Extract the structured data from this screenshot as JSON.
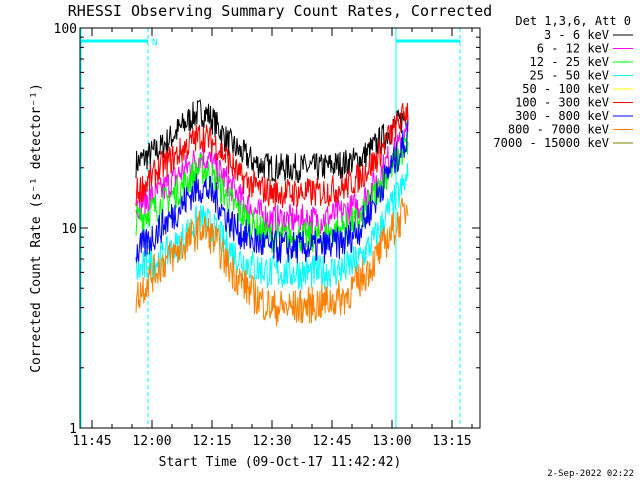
{
  "chart_data": {
    "type": "line",
    "title": "RHESSI Observing Summary Count Rates, Corrected",
    "xlabel": "Start Time (09-Oct-17 11:42:42)",
    "ylabel": "Corrected Count Rate (s⁻¹ detector⁻¹)",
    "yscale": "log",
    "ylim": [
      1,
      100
    ],
    "xlim": [
      "11:42",
      "13:22"
    ],
    "x_ticks": [
      "11:45",
      "12:00",
      "12:15",
      "12:30",
      "12:45",
      "13:00",
      "13:15"
    ],
    "y_ticks": [
      "1",
      "10",
      "100"
    ],
    "legend_header": "Det 1,3,6, Att 0",
    "legend_position": "top-right, outside plot",
    "annotations": {
      "night_marker": "N",
      "date_stamp": "2-Sep-2022 02:22"
    },
    "x_knots": [
      "11:56",
      "11:59",
      "12:02",
      "12:06",
      "12:10",
      "12:12",
      "12:14",
      "12:16",
      "12:19",
      "12:22",
      "12:26",
      "12:30",
      "12:36",
      "12:42",
      "12:48",
      "12:52",
      "12:56",
      "12:59",
      "13:02",
      "13:04"
    ],
    "series": [
      {
        "name": "3 - 6 keV",
        "color": "#000000",
        "values": [
          21,
          23,
          25,
          30,
          36,
          38,
          37,
          33,
          27,
          24,
          21,
          20,
          20,
          20,
          21,
          22,
          26,
          30,
          34,
          37
        ]
      },
      {
        "name": "6 - 12 keV",
        "color": "#ff00ff",
        "values": [
          13,
          14,
          15,
          18,
          21,
          23,
          22,
          20,
          17,
          14,
          12,
          11,
          11,
          11,
          12,
          13,
          17,
          22,
          26,
          30
        ]
      },
      {
        "name": "12 - 25 keV",
        "color": "#00ff00",
        "values": [
          11,
          12,
          13,
          15,
          18,
          20,
          19,
          17,
          14,
          12,
          10,
          9,
          9,
          9,
          10,
          11,
          15,
          19,
          23,
          27
        ]
      },
      {
        "name": "25 - 50 keV",
        "color": "#00ffff",
        "values": [
          6,
          6.5,
          7,
          8,
          10,
          11,
          10.5,
          9.5,
          8,
          7,
          6.3,
          6,
          6,
          6,
          6.2,
          7,
          9,
          12,
          15,
          18
        ]
      },
      {
        "name": "50 - 100 keV",
        "color": "#ffff00",
        "values": []
      },
      {
        "name": "100 - 300 keV",
        "color": "#ff0000",
        "values": [
          15,
          17,
          20,
          23,
          27,
          29,
          28,
          26,
          22,
          18,
          16,
          15,
          15,
          15,
          16,
          18,
          22,
          28,
          34,
          40
        ]
      },
      {
        "name": "300 - 800 keV",
        "color": "#0000ff",
        "values": [
          7.5,
          8.5,
          10,
          12,
          15,
          16,
          15.5,
          14,
          11,
          9.5,
          8.5,
          8,
          8,
          8,
          8.5,
          10,
          14,
          19,
          24,
          29
        ]
      },
      {
        "name": "800 - 7000 keV",
        "color": "#ff8000",
        "values": [
          4.5,
          5.5,
          6.5,
          7.5,
          9,
          10,
          9.5,
          8.5,
          6.5,
          5.5,
          4.5,
          4,
          4,
          4.2,
          4.5,
          5.5,
          7,
          9,
          11,
          13
        ]
      },
      {
        "name": "7000 - 15000 keV",
        "color": "#808000",
        "values": []
      }
    ]
  }
}
